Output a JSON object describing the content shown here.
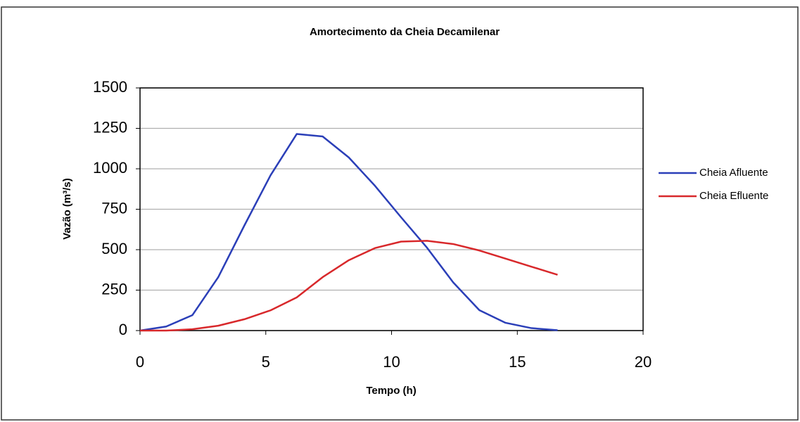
{
  "chart_data": {
    "type": "line",
    "title": "Amortecimento da Cheia Decamilenar",
    "x_label": "Tempo (h)",
    "y_label": "Vazão (m³/s)",
    "x": [
      0,
      1.04,
      2.08,
      3.11,
      4.15,
      5.19,
      6.23,
      7.26,
      8.3,
      9.34,
      10.38,
      11.41,
      12.45,
      13.49,
      14.53,
      15.56,
      16.6
    ],
    "series": [
      {
        "name": "Cheia Afluente",
        "color": "#2b3fb8",
        "values": [
          0,
          25,
          95,
          330,
          650,
          960,
          1215,
          1200,
          1070,
          895,
          700,
          512,
          298,
          126,
          48,
          15,
          2
        ]
      },
      {
        "name": "Cheia Efluente",
        "color": "#d8282b",
        "values": [
          0,
          0,
          8,
          30,
          70,
          125,
          205,
          330,
          435,
          510,
          550,
          555,
          535,
          495,
          445,
          395,
          345
        ]
      }
    ],
    "xlim": [
      0,
      20
    ],
    "xticks": [
      0,
      5,
      10,
      15,
      20
    ],
    "ylim": [
      0,
      1500
    ],
    "yticks": [
      0,
      250,
      500,
      750,
      1000,
      1250,
      1500
    ],
    "grid": true,
    "legend": "right"
  }
}
